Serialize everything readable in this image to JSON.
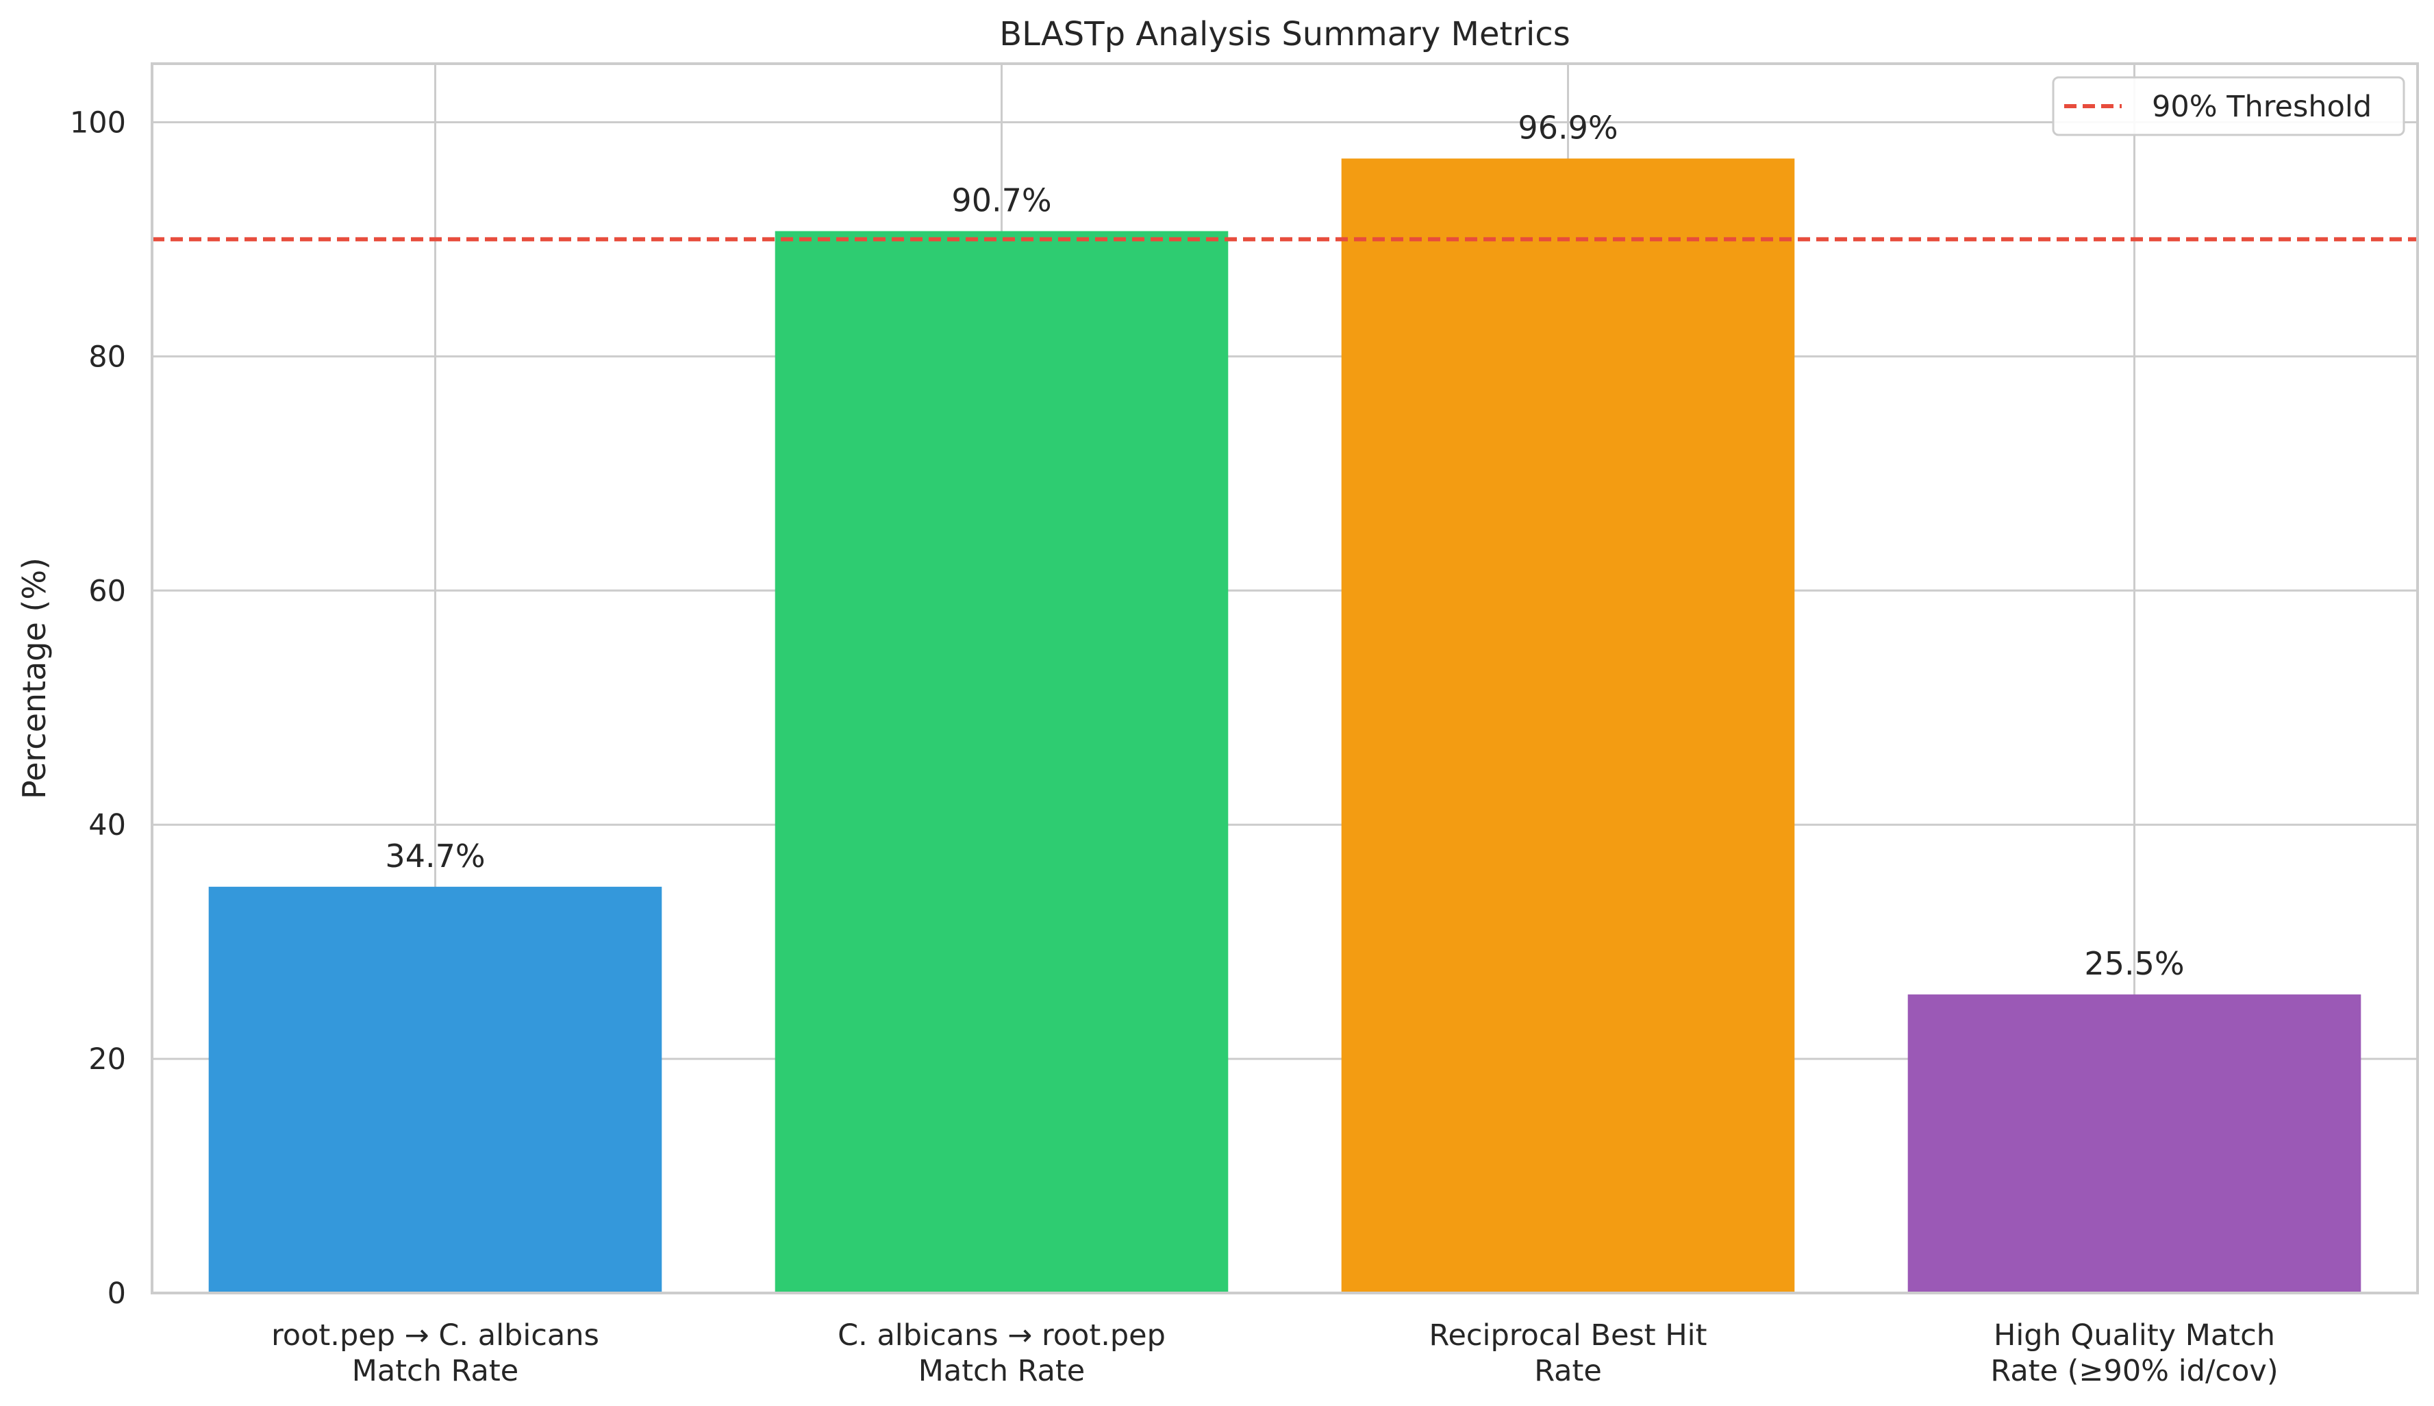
{
  "chart_data": {
    "type": "bar",
    "title": "BLASTp Analysis Summary Metrics",
    "xlabel": "",
    "ylabel": "Percentage (%)",
    "ylim": [
      0,
      105
    ],
    "yticks": [
      0,
      20,
      40,
      60,
      80,
      100
    ],
    "grid": true,
    "legend_position": "top-right",
    "categories": [
      [
        "root.pep → C. albicans",
        "Match Rate"
      ],
      [
        "C. albicans → root.pep",
        "Match Rate"
      ],
      [
        "Reciprocal Best Hit",
        "Rate"
      ],
      [
        "High Quality Match",
        "Rate (≥90% id/cov)"
      ]
    ],
    "values": [
      34.7,
      90.7,
      96.9,
      25.5
    ],
    "value_labels": [
      "34.7%",
      "90.7%",
      "96.9%",
      "25.5%"
    ],
    "colors": [
      "#3498db",
      "#2ecc71",
      "#f39c12",
      "#9b59b6"
    ],
    "threshold": {
      "value": 90,
      "label": "90% Threshold",
      "color": "#e74c3c",
      "style": "dashed"
    }
  }
}
